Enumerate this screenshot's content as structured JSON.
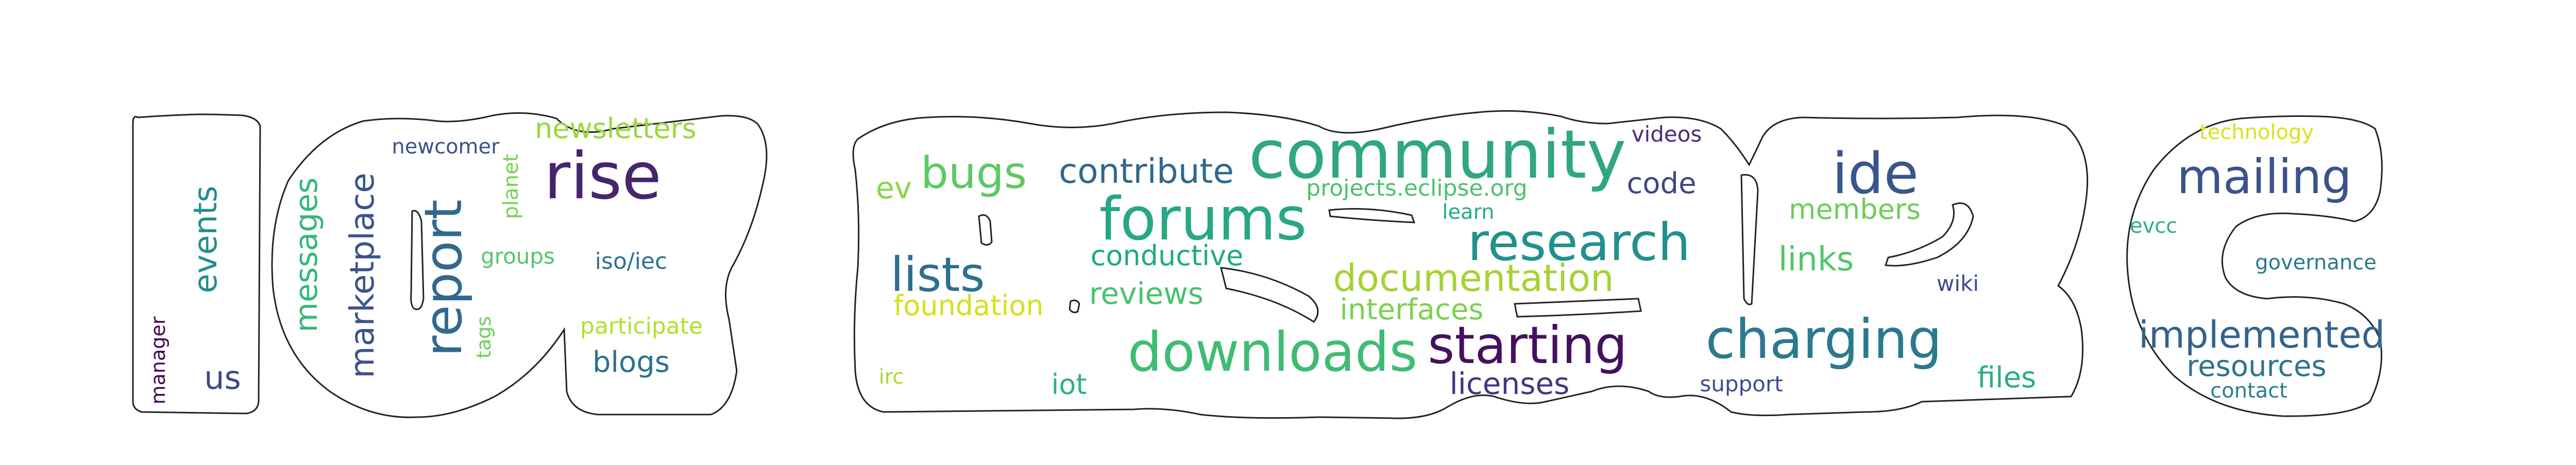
{
  "outline_color": "#222222",
  "words": [
    {
      "text": "community",
      "color": "#2fa77f"
    },
    {
      "text": "forums",
      "color": "#26a884"
    },
    {
      "text": "downloads",
      "color": "#3fbc73"
    },
    {
      "text": "starting",
      "color": "#45115f"
    },
    {
      "text": "charging",
      "color": "#2a7a8e"
    },
    {
      "text": "research",
      "color": "#21918c"
    },
    {
      "text": "documentation",
      "color": "#a6d233"
    },
    {
      "text": "rise",
      "color": "#46256e"
    },
    {
      "text": "ide",
      "color": "#39568c"
    },
    {
      "text": "mailing",
      "color": "#3b528b"
    },
    {
      "text": "implemented",
      "color": "#33638d"
    },
    {
      "text": "report",
      "color": "#31688e"
    },
    {
      "text": "lists",
      "color": "#2d6f8e"
    },
    {
      "text": "bugs",
      "color": "#5ec962"
    },
    {
      "text": "contribute",
      "color": "#31688e"
    },
    {
      "text": "marketplace",
      "color": "#3a538b"
    },
    {
      "text": "messages",
      "color": "#35b779"
    },
    {
      "text": "events",
      "color": "#218f8d"
    },
    {
      "text": "newsletters",
      "color": "#98d83e"
    },
    {
      "text": "conductive",
      "color": "#22a884"
    },
    {
      "text": "reviews",
      "color": "#4ac16d"
    },
    {
      "text": "interfaces",
      "color": "#7ad151"
    },
    {
      "text": "foundation",
      "color": "#d2e21b"
    },
    {
      "text": "licenses",
      "color": "#463480"
    },
    {
      "text": "members",
      "color": "#6ece58"
    },
    {
      "text": "links",
      "color": "#52c569"
    },
    {
      "text": "resources",
      "color": "#2c738e"
    },
    {
      "text": "blogs",
      "color": "#2c728e"
    },
    {
      "text": "code",
      "color": "#414487"
    },
    {
      "text": "files",
      "color": "#29af7f"
    },
    {
      "text": "us",
      "color": "#3e4989"
    },
    {
      "text": "projects.eclipse.org",
      "color": "#4ac16d"
    },
    {
      "text": "iot",
      "color": "#2fb47c"
    },
    {
      "text": "ev",
      "color": "#86d549"
    },
    {
      "text": "videos",
      "color": "#472c7a"
    },
    {
      "text": "learn",
      "color": "#25ac82"
    },
    {
      "text": "governance",
      "color": "#2a788e"
    },
    {
      "text": "participate",
      "color": "#b5de2b"
    },
    {
      "text": "newcomer",
      "color": "#3b528b"
    },
    {
      "text": "planet",
      "color": "#7ad151"
    },
    {
      "text": "groups",
      "color": "#52c569"
    },
    {
      "text": "iso/iec",
      "color": "#2d708e"
    },
    {
      "text": "tags",
      "color": "#6ece58"
    },
    {
      "text": "manager",
      "color": "#440154"
    },
    {
      "text": "technology",
      "color": "#d8e219"
    },
    {
      "text": "evcc",
      "color": "#2ab07f"
    },
    {
      "text": "contact",
      "color": "#27808e"
    },
    {
      "text": "wiki",
      "color": "#3e4a89"
    },
    {
      "text": "support",
      "color": "#3d4e8a"
    },
    {
      "text": "irc",
      "color": "#a5db36"
    }
  ]
}
